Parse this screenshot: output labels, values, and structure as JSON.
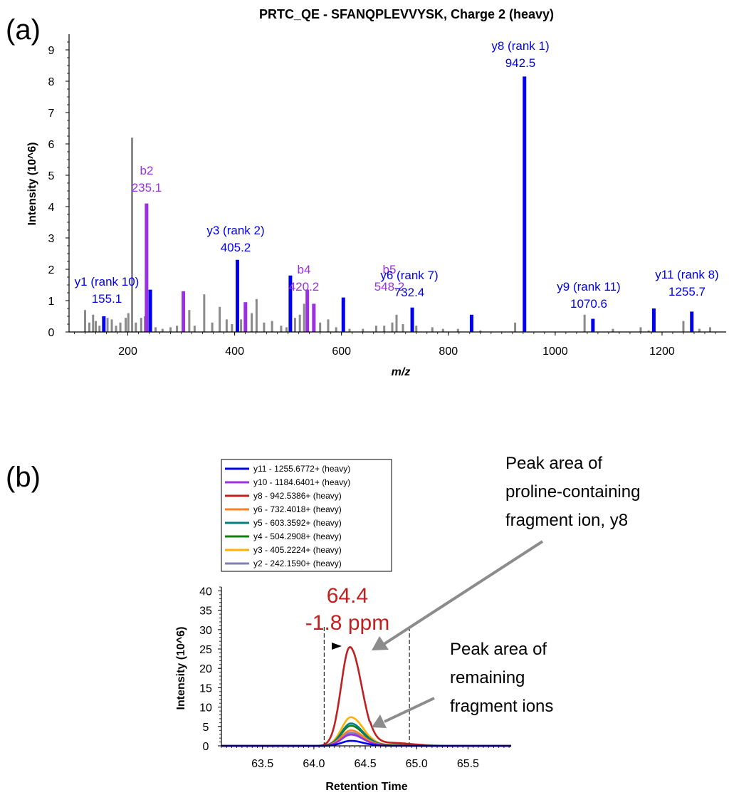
{
  "panel_a_label": "(a)",
  "panel_b_label": "(b)",
  "chart_data": [
    {
      "type": "bar",
      "title": "PRTC_QE - SFANQPLEVVYSK, Charge 2 (heavy)",
      "xlabel": "m/z",
      "ylabel": "Intensity (10^6)",
      "xlim": [
        90,
        1320
      ],
      "ylim": [
        0,
        9.5
      ],
      "xticks": [
        200,
        400,
        600,
        800,
        1000,
        1200
      ],
      "yticks": [
        0,
        1,
        2,
        3,
        4,
        5,
        6,
        7,
        8,
        9
      ],
      "colors": {
        "y_ion": "#0000ee",
        "b_ion": "#9a30e0",
        "unmatched": "#8a8a8a"
      },
      "annotated_peaks": [
        {
          "ion": "y1",
          "mz": 155.1,
          "intensity": 0.5,
          "series": "y",
          "label": "y1 (rank 10)",
          "value_label": "155.1"
        },
        {
          "ion": "b2",
          "mz": 235.1,
          "intensity": 4.1,
          "series": "b",
          "label": "b2",
          "value_label": "235.1"
        },
        {
          "ion": "y3",
          "mz": 405.2,
          "intensity": 2.3,
          "series": "y",
          "label": "y3 (rank 2)",
          "value_label": "405.2"
        },
        {
          "ion": "b4",
          "mz": 420.2,
          "intensity": 0.95,
          "series": "b",
          "label": "b4",
          "value_label": "420.2"
        },
        {
          "ion": "b5",
          "mz": 548.2,
          "intensity": 0.9,
          "series": "b",
          "label": "b5",
          "value_label": "548.2"
        },
        {
          "ion": "y6",
          "mz": 732.4,
          "intensity": 0.78,
          "series": "y",
          "label": "y6 (rank 7)",
          "value_label": "732.4"
        },
        {
          "ion": "y8",
          "mz": 942.5,
          "intensity": 8.15,
          "series": "y",
          "label": "y8 (rank 1)",
          "value_label": "942.5"
        },
        {
          "ion": "y9",
          "mz": 1070.6,
          "intensity": 0.42,
          "series": "y",
          "label": "y9 (rank 11)",
          "value_label": "1070.6"
        },
        {
          "ion": "y11",
          "mz": 1255.7,
          "intensity": 0.65,
          "series": "y",
          "label": "y11 (rank 8)",
          "value_label": "1255.7"
        }
      ],
      "other_matched_peaks": [
        {
          "mz": 242.1,
          "intensity": 1.35,
          "series": "y"
        },
        {
          "mz": 304.0,
          "intensity": 1.3,
          "series": "b"
        },
        {
          "mz": 504.3,
          "intensity": 1.8,
          "series": "y"
        },
        {
          "mz": 536.0,
          "intensity": 1.35,
          "series": "b"
        },
        {
          "mz": 603.4,
          "intensity": 1.1,
          "series": "y"
        },
        {
          "mz": 843.5,
          "intensity": 0.55,
          "series": "y"
        },
        {
          "mz": 1184.6,
          "intensity": 0.75,
          "series": "y"
        }
      ],
      "unmatched_peaks": [
        {
          "mz": 120,
          "intensity": 0.7
        },
        {
          "mz": 128,
          "intensity": 0.3
        },
        {
          "mz": 135,
          "intensity": 0.55
        },
        {
          "mz": 140,
          "intensity": 0.35
        },
        {
          "mz": 147,
          "intensity": 0.2
        },
        {
          "mz": 162,
          "intensity": 0.45
        },
        {
          "mz": 170,
          "intensity": 0.4
        },
        {
          "mz": 178,
          "intensity": 0.2
        },
        {
          "mz": 186,
          "intensity": 0.3
        },
        {
          "mz": 196,
          "intensity": 0.45
        },
        {
          "mz": 201,
          "intensity": 0.6
        },
        {
          "mz": 208,
          "intensity": 6.2
        },
        {
          "mz": 215,
          "intensity": 0.3
        },
        {
          "mz": 225,
          "intensity": 0.45
        },
        {
          "mz": 232,
          "intensity": 0.5
        },
        {
          "mz": 252,
          "intensity": 0.15
        },
        {
          "mz": 265,
          "intensity": 0.1
        },
        {
          "mz": 280,
          "intensity": 0.15
        },
        {
          "mz": 292,
          "intensity": 0.2
        },
        {
          "mz": 315,
          "intensity": 0.7
        },
        {
          "mz": 325,
          "intensity": 0.2
        },
        {
          "mz": 343,
          "intensity": 1.2
        },
        {
          "mz": 358,
          "intensity": 0.3
        },
        {
          "mz": 372,
          "intensity": 0.8
        },
        {
          "mz": 385,
          "intensity": 0.4
        },
        {
          "mz": 395,
          "intensity": 0.25
        },
        {
          "mz": 412,
          "intensity": 0.4
        },
        {
          "mz": 432,
          "intensity": 0.6
        },
        {
          "mz": 441,
          "intensity": 1.05
        },
        {
          "mz": 455,
          "intensity": 0.3
        },
        {
          "mz": 470,
          "intensity": 0.35
        },
        {
          "mz": 487,
          "intensity": 0.2
        },
        {
          "mz": 497,
          "intensity": 0.15
        },
        {
          "mz": 513,
          "intensity": 0.45
        },
        {
          "mz": 522,
          "intensity": 0.55
        },
        {
          "mz": 530,
          "intensity": 0.9
        },
        {
          "mz": 560,
          "intensity": 0.3
        },
        {
          "mz": 575,
          "intensity": 0.4
        },
        {
          "mz": 590,
          "intensity": 0.15
        },
        {
          "mz": 615,
          "intensity": 0.1
        },
        {
          "mz": 640,
          "intensity": 0.1
        },
        {
          "mz": 665,
          "intensity": 0.2
        },
        {
          "mz": 680,
          "intensity": 0.2
        },
        {
          "mz": 695,
          "intensity": 0.3
        },
        {
          "mz": 703,
          "intensity": 0.55
        },
        {
          "mz": 715,
          "intensity": 0.25
        },
        {
          "mz": 740,
          "intensity": 0.2
        },
        {
          "mz": 770,
          "intensity": 0.15
        },
        {
          "mz": 790,
          "intensity": 0.1
        },
        {
          "mz": 818,
          "intensity": 0.1
        },
        {
          "mz": 860,
          "intensity": 0.05
        },
        {
          "mz": 925,
          "intensity": 0.3
        },
        {
          "mz": 1055,
          "intensity": 0.55
        },
        {
          "mz": 1108,
          "intensity": 0.1
        },
        {
          "mz": 1160,
          "intensity": 0.15
        },
        {
          "mz": 1175,
          "intensity": 0.05
        },
        {
          "mz": 1240,
          "intensity": 0.35
        },
        {
          "mz": 1270,
          "intensity": 0.1
        },
        {
          "mz": 1290,
          "intensity": 0.15
        }
      ]
    },
    {
      "type": "line",
      "title": "",
      "xlabel": "Retention Time",
      "ylabel": "Intensity (10^6)",
      "xlim": [
        63.1,
        65.92
      ],
      "ylim": [
        0,
        41
      ],
      "xticks": [
        63.5,
        64.0,
        64.5,
        65.0,
        65.5
      ],
      "xtick_labels": [
        "63.5",
        "64.0",
        "64.5",
        "65.0",
        "65.5"
      ],
      "yticks": [
        0,
        5,
        10,
        15,
        20,
        25,
        30,
        35,
        40
      ],
      "integration_bounds": [
        64.1,
        64.93
      ],
      "peak_apex_rt": 64.35,
      "peak_annotation": {
        "rt_label": "64.4",
        "mass_error_label": "-1.8 ppm"
      },
      "series": [
        {
          "name": "y11 - 1255.6772+ (heavy)",
          "color": "#0000ee",
          "apex_rt": 64.36,
          "apex": 1.3,
          "width": 0.09
        },
        {
          "name": "y10 - 1184.6401+ (heavy)",
          "color": "#9a30e0",
          "apex_rt": 64.36,
          "apex": 2.9,
          "width": 0.09
        },
        {
          "name": "y8 - 942.5386+ (heavy)",
          "color": "#c02020",
          "apex_rt": 64.35,
          "apex": 25.5,
          "width": 0.085
        },
        {
          "name": "y6 - 732.4018+ (heavy)",
          "color": "#ff7f27",
          "apex_rt": 64.36,
          "apex": 4.0,
          "width": 0.09
        },
        {
          "name": "y5 - 603.3592+ (heavy)",
          "color": "#008080",
          "apex_rt": 64.36,
          "apex": 5.8,
          "width": 0.09
        },
        {
          "name": "y4 - 504.2908+ (heavy)",
          "color": "#108010",
          "apex_rt": 64.36,
          "apex": 5.2,
          "width": 0.09
        },
        {
          "name": "y3 - 405.2224+ (heavy)",
          "color": "#ffb000",
          "apex_rt": 64.36,
          "apex": 7.4,
          "width": 0.09
        },
        {
          "name": "y2 - 242.1590+ (heavy)",
          "color": "#7f7fbf",
          "apex_rt": 64.36,
          "apex": 3.4,
          "width": 0.09
        }
      ],
      "callouts": [
        {
          "text": [
            "Peak area of",
            "proline-containing",
            "fragment ion, y8"
          ]
        },
        {
          "text": [
            "Peak area of",
            "remaining",
            "fragment ions"
          ]
        }
      ]
    }
  ]
}
